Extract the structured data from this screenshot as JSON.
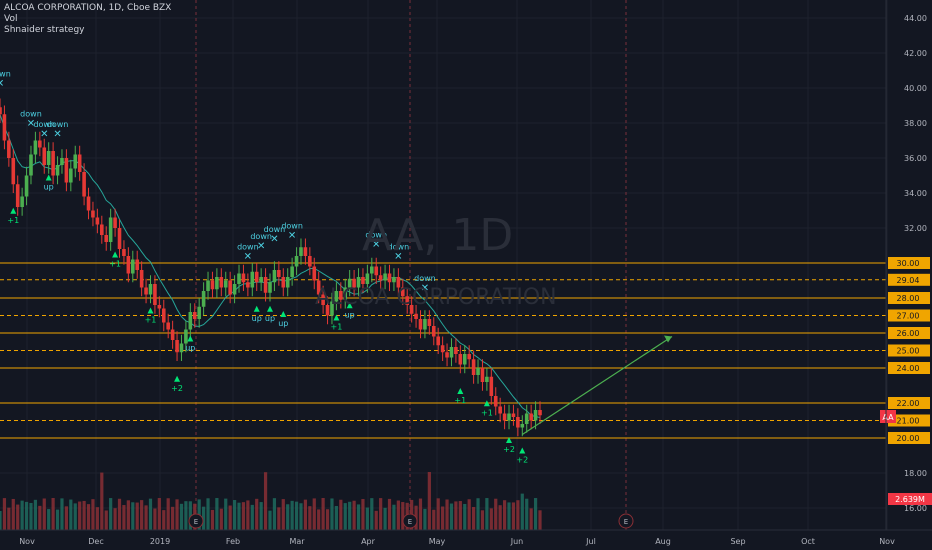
{
  "header": {
    "title": "ALCOA CORPORATION, 1D, Cboe BZX",
    "vol_label": "Vol",
    "strategy_label": "Shnaider strategy"
  },
  "watermark": {
    "symbol": "AA, 1D",
    "name": "ALCOA CORPORATION"
  },
  "colors": {
    "background": "#131722",
    "grid": "#1e222d",
    "up": "#26a69a",
    "down": "#ef5350",
    "candle_up": "#4caf50",
    "candle_down": "#e53935",
    "level": "#f0a500",
    "ma": "#26a69a",
    "signal_up": "#00e676",
    "signal_text": "#4dd0e1",
    "trendline": "#4caf50",
    "price_tag": "#f23645"
  },
  "chart_data": {
    "type": "candlestick",
    "ylim": [
      15,
      45
    ],
    "price_ticks": [
      "44.00",
      "42.00",
      "40.00",
      "38.00",
      "36.00",
      "34.00",
      "32.00",
      "30.00",
      "28.00",
      "26.00",
      "24.00",
      "22.00",
      "20.00",
      "18.00",
      "16.00"
    ],
    "time_ticks": [
      "Nov",
      "Dec",
      "2019",
      "Feb",
      "Mar",
      "Apr",
      "May",
      "Jun",
      "Jul",
      "Aug",
      "Sep",
      "Oct",
      "Nov"
    ],
    "level_labels": [
      {
        "price": 30.0,
        "label": "30.00",
        "style": "solid"
      },
      {
        "price": 29.04,
        "label": "29.04",
        "style": "dashed"
      },
      {
        "price": 28.0,
        "label": "28.00",
        "style": "solid"
      },
      {
        "price": 27.0,
        "label": "27.00",
        "style": "dashed"
      },
      {
        "price": 26.0,
        "label": "26.00",
        "style": "solid"
      },
      {
        "price": 25.0,
        "label": "25.00",
        "style": "dashed"
      },
      {
        "price": 24.0,
        "label": "24.00",
        "style": "solid"
      },
      {
        "price": 22.0,
        "label": "22.00",
        "style": "solid"
      },
      {
        "price": 21.0,
        "label": "21.00",
        "style": "dashed"
      },
      {
        "price": 20.0,
        "label": "20.00",
        "style": "solid"
      }
    ],
    "last_price_symbol": "AA",
    "volume_label": "2.639M",
    "earnings_label": "E",
    "close_series": [
      38.5,
      37.0,
      36.0,
      34.5,
      33.2,
      33.8,
      35.0,
      36.2,
      37.0,
      36.6,
      35.6,
      36.4,
      35.0,
      35.6,
      36.0,
      34.6,
      35.4,
      36.2,
      35.2,
      33.8,
      33.0,
      32.6,
      32.2,
      31.6,
      31.2,
      32.6,
      32.0,
      30.8,
      30.4,
      29.4,
      30.2,
      29.6,
      28.6,
      28.2,
      28.8,
      27.6,
      27.4,
      26.6,
      26.2,
      25.6,
      24.9,
      25.4,
      26.2,
      27.2,
      26.8,
      27.5,
      28.4,
      29.0,
      28.5,
      29.2,
      28.6,
      29.0,
      28.2,
      28.8,
      29.4,
      28.9,
      28.6,
      29.5,
      28.9,
      29.2,
      28.3,
      28.9,
      29.6,
      29.2,
      28.6,
      29.2,
      29.8,
      30.4,
      30.9,
      30.4,
      29.8,
      29.0,
      28.2,
      27.6,
      27.0,
      27.8,
      28.4,
      27.9,
      28.6,
      29.1,
      28.6,
      29.2,
      28.8,
      29.4,
      29.8,
      29.3,
      29.0,
      29.4,
      28.9,
      29.2,
      28.6,
      28.1,
      27.6,
      27.1,
      26.8,
      26.2,
      26.8,
      26.4,
      25.8,
      25.3,
      24.9,
      24.6,
      25.2,
      24.8,
      24.2,
      24.8,
      24.5,
      23.6,
      24.0,
      23.2,
      23.5,
      22.4,
      21.8,
      21.4,
      21.0,
      21.4,
      21.2,
      20.6,
      20.8,
      21.4,
      21.0,
      21.6,
      21.3
    ],
    "signals": [
      {
        "i": 0,
        "dir": "down",
        "label": "down"
      },
      {
        "i": 7,
        "dir": "down",
        "label": "down"
      },
      {
        "i": 10,
        "dir": "down",
        "label": "down"
      },
      {
        "i": 13,
        "dir": "down",
        "label": "down"
      },
      {
        "i": 3,
        "dir": "up",
        "label": "+1"
      },
      {
        "i": 11,
        "dir": "up",
        "label": "up"
      },
      {
        "i": 26,
        "dir": "up",
        "label": "+1"
      },
      {
        "i": 34,
        "dir": "up",
        "label": "+1"
      },
      {
        "i": 40,
        "dir": "up",
        "label": "+2"
      },
      {
        "i": 43,
        "dir": "up",
        "label": "up"
      },
      {
        "i": 56,
        "dir": "down",
        "label": "down"
      },
      {
        "i": 59,
        "dir": "down",
        "label": "down"
      },
      {
        "i": 62,
        "dir": "down",
        "label": "down"
      },
      {
        "i": 66,
        "dir": "down",
        "label": "down"
      },
      {
        "i": 58,
        "dir": "up",
        "label": "up"
      },
      {
        "i": 61,
        "dir": "up",
        "label": "up"
      },
      {
        "i": 64,
        "dir": "up",
        "label": "up"
      },
      {
        "i": 76,
        "dir": "up",
        "label": "+1"
      },
      {
        "i": 79,
        "dir": "up",
        "label": "up"
      },
      {
        "i": 85,
        "dir": "down",
        "label": "down"
      },
      {
        "i": 90,
        "dir": "down",
        "label": "down"
      },
      {
        "i": 96,
        "dir": "down",
        "label": "down"
      },
      {
        "i": 104,
        "dir": "up",
        "label": "+1"
      },
      {
        "i": 110,
        "dir": "up",
        "label": "+1"
      },
      {
        "i": 115,
        "dir": "up",
        "label": "+2"
      },
      {
        "i": 118,
        "dir": "up",
        "label": "+2"
      }
    ],
    "trendline": {
      "x1": 118,
      "y1": 20.2,
      "x2": 157,
      "y2": 25.8
    }
  }
}
